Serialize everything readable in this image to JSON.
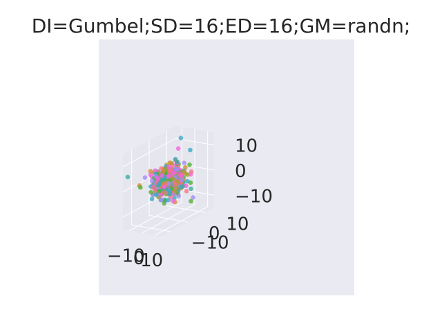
{
  "chart_data": {
    "type": "scatter",
    "projection": "3d",
    "title": "DI=Gumbel;SD=16;ED=16;GM=randn;",
    "xlabel": "",
    "ylabel": "",
    "zlabel": "",
    "xlim": [
      -15,
      15
    ],
    "ylim": [
      -15,
      15
    ],
    "zlim": [
      -15,
      15
    ],
    "x_ticks": [
      "−10",
      "0",
      "10"
    ],
    "y_ticks": [
      "−10",
      "0",
      "10"
    ],
    "z_ticks": [
      "−10",
      "0",
      "10"
    ],
    "grid": true,
    "background": "#eaeaf2",
    "pane_color": "#e6e6ee",
    "grid_color": "#ffffff",
    "tick_color": "#262626",
    "series_colors": [
      "#f77189",
      "#d58c32",
      "#a4a031",
      "#50b131",
      "#36ada4",
      "#38a9c5",
      "#a48cf4",
      "#f561dd"
    ],
    "point_count": 500,
    "distribution_note": "roughly isotropic cloud centered near origin, spread about 4 units, a few outliers up to about 12"
  }
}
